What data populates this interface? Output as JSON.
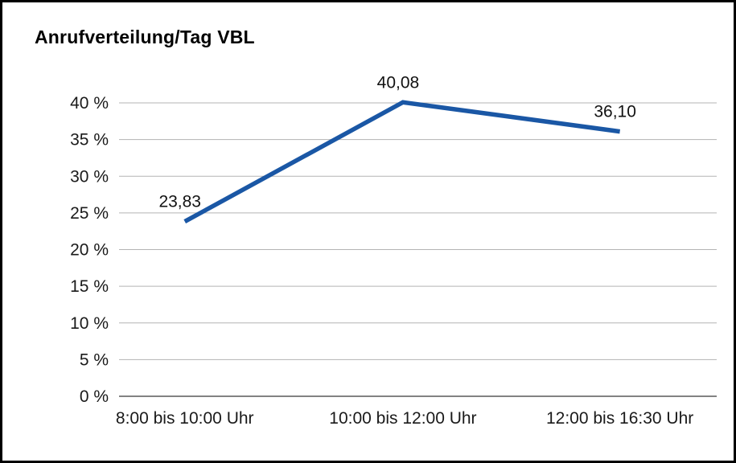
{
  "chart_data": {
    "type": "line",
    "title": "Anrufverteilung/Tag VBL",
    "categories": [
      "8:00 bis 10:00 Uhr",
      "10:00 bis 12:00 Uhr",
      "12:00 bis 16:30 Uhr"
    ],
    "values": [
      23.83,
      40.08,
      36.1
    ],
    "data_labels": [
      "23,83",
      "40,08",
      "36,10"
    ],
    "ylim": [
      0,
      40
    ],
    "ytick_step": 5,
    "ytick_labels": [
      "0 %",
      "5 %",
      "10 %",
      "15 %",
      "20 %",
      "25 %",
      "30 %",
      "35 %",
      "40 %"
    ],
    "grid": true,
    "legend": "none",
    "line_color": "#1a57a5",
    "grid_color": "#b3b3b3",
    "axis_color": "#595959",
    "text_color": "#1a1a1a"
  }
}
